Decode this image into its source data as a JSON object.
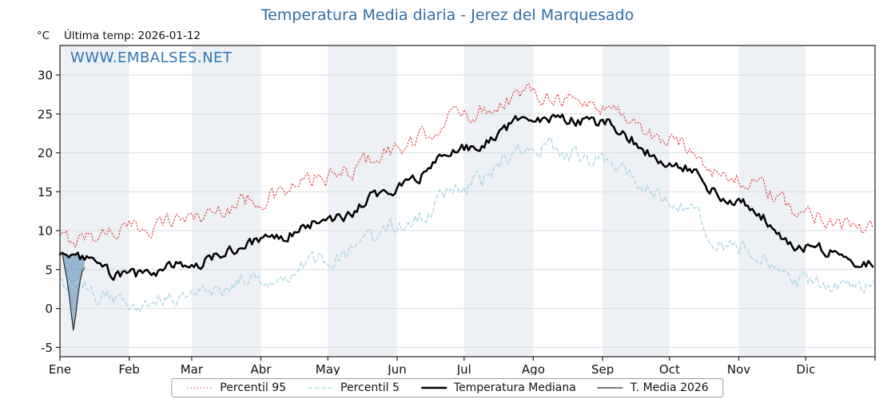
{
  "title": "Temperatura Media diaria - Jerez del Marquesado",
  "unit_label": "°C",
  "last_temp_label": "Última temp: 2026-01-12",
  "watermark": "WWW.EMBALSES.NET",
  "colors": {
    "title": "#2e6da4",
    "watermark": "#2e75b6",
    "axis": "#222222",
    "grid": "#d8dde3",
    "tick_label": "#111111"
  },
  "chart_data": {
    "type": "line",
    "title": "Temperatura Media diaria - Jerez del Marquesado",
    "xlabel": "",
    "ylabel": "°C",
    "x_tick_labels": [
      "Ene",
      "Feb",
      "Mar",
      "Abr",
      "May",
      "Jun",
      "Jul",
      "Ago",
      "Sep",
      "Oct",
      "Nov",
      "Dic"
    ],
    "month_days": [
      31,
      28,
      31,
      30,
      31,
      30,
      31,
      31,
      30,
      31,
      30,
      31
    ],
    "yticks": [
      -5,
      0,
      5,
      10,
      15,
      20,
      25,
      30
    ],
    "ylim": [
      -6.2,
      33.8
    ],
    "band_colors": [
      "#edf0f4",
      "#ffffff"
    ],
    "legend_position": "bottom",
    "grid": true,
    "series": [
      {
        "name": "Percentil 95",
        "color": "#e03a3a",
        "style": "dotted",
        "width": 1.1,
        "noise": 1.1,
        "monthly_start_values": [
          8.8,
          10.2,
          11.8,
          14.2,
          16.8,
          20.5,
          25.0,
          27.8,
          26.0,
          21.5,
          16.5,
          12.3,
          9.8
        ]
      },
      {
        "name": "Percentil 5",
        "color": "#a6d4e2",
        "style": "dashed",
        "width": 1.3,
        "noise": 1.1,
        "monthly_start_values": [
          3.0,
          0.8,
          1.8,
          4.0,
          6.2,
          10.5,
          15.5,
          21.0,
          19.0,
          14.0,
          7.5,
          3.2,
          2.5
        ]
      },
      {
        "name": "Temperatura Mediana",
        "color": "#000000",
        "style": "solid",
        "width": 2.5,
        "noise": 0.7,
        "monthly_start_values": [
          7.0,
          4.2,
          5.8,
          8.6,
          11.2,
          15.5,
          20.5,
          24.5,
          23.8,
          19.0,
          13.5,
          8.0,
          5.6
        ]
      },
      {
        "name": "T. Media 2026",
        "color": "#2b2b2b",
        "style": "solid",
        "width": 1.2,
        "daily_values": [
          6.8,
          7.2,
          5.5,
          4.0,
          2.0,
          -0.5,
          -2.8,
          -1.0,
          1.5,
          3.5,
          4.8,
          5.2
        ]
      }
    ],
    "fill_2026": {
      "between": [
        "T. Media 2026",
        "Temperatura Mediana"
      ],
      "color": "#4f86b5",
      "opacity": 0.55
    }
  }
}
